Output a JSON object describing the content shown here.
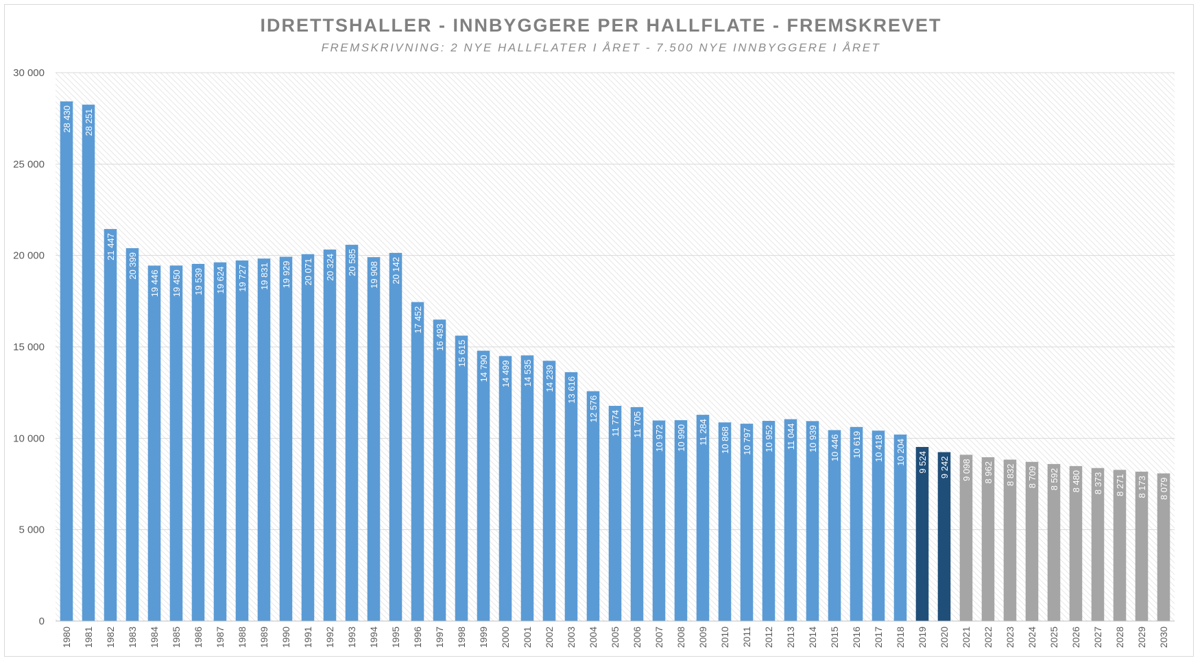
{
  "chart_data": {
    "type": "bar",
    "title": "IDRETTSHALLER - INNBYGGERE PER HALLFLATE - FREMSKREVET",
    "subtitle": "FREMSKRIVNING: 2 NYE HALLFLATER I ÅRET - 7.500 NYE INNBYGGERE I ÅRET",
    "xlabel": "",
    "ylabel": "",
    "ylim": [
      0,
      30000
    ],
    "yticks": [
      0,
      5000,
      10000,
      15000,
      20000,
      25000,
      30000
    ],
    "ytick_labels": [
      "0",
      "5 000",
      "10 000",
      "15 000",
      "20 000",
      "25 000",
      "30 000"
    ],
    "grid": true,
    "legend": "none",
    "categories": [
      "1980",
      "1981",
      "1982",
      "1983",
      "1984",
      "1985",
      "1986",
      "1987",
      "1988",
      "1989",
      "1990",
      "1991",
      "1992",
      "1993",
      "1994",
      "1995",
      "1996",
      "1997",
      "1998",
      "1999",
      "2000",
      "2001",
      "2002",
      "2003",
      "2004",
      "2005",
      "2006",
      "2007",
      "2008",
      "2009",
      "2010",
      "2011",
      "2012",
      "2013",
      "2014",
      "2015",
      "2016",
      "2017",
      "2018",
      "2019",
      "2020",
      "2021",
      "2022",
      "2023",
      "2024",
      "2025",
      "2026",
      "2027",
      "2028",
      "2029",
      "2030"
    ],
    "values": [
      28430,
      28251,
      21447,
      20399,
      19446,
      19450,
      19539,
      19624,
      19727,
      19831,
      19929,
      20071,
      20324,
      20585,
      19908,
      20142,
      17452,
      16493,
      15615,
      14790,
      14499,
      14535,
      14239,
      13616,
      12576,
      11774,
      11705,
      10972,
      10990,
      11284,
      10868,
      10797,
      10952,
      11044,
      10939,
      10446,
      10619,
      10418,
      10204,
      9524,
      9242,
      9098,
      8962,
      8832,
      8709,
      8592,
      8480,
      8373,
      8271,
      8173,
      8079
    ],
    "value_labels": [
      "28 430",
      "28 251",
      "21 447",
      "20 399",
      "19 446",
      "19 450",
      "19 539",
      "19 624",
      "19 727",
      "19 831",
      "19 929",
      "20 071",
      "20 324",
      "20 585",
      "19 908",
      "20 142",
      "17 452",
      "16 493",
      "15 615",
      "14 790",
      "14 499",
      "14 535",
      "14 239",
      "13 616",
      "12 576",
      "11 774",
      "11 705",
      "10 972",
      "10 990",
      "11 284",
      "10 868",
      "10 797",
      "10 952",
      "11 044",
      "10 939",
      "10 446",
      "10 619",
      "10 418",
      "10 204",
      "9 524",
      "9 242",
      "9 098",
      "8 962",
      "8 832",
      "8 709",
      "8 592",
      "8 480",
      "8 373",
      "8 271",
      "8 173",
      "8 079"
    ],
    "bar_groups": [
      {
        "from": "1980",
        "to": "2018",
        "color": "#5b9bd5"
      },
      {
        "from": "2019",
        "to": "2020",
        "color": "#1f4e79"
      },
      {
        "from": "2021",
        "to": "2030",
        "color": "#a5a5a5"
      }
    ],
    "colors": {
      "axis_text": "#595959",
      "gridline": "#d9d9d9",
      "plot_hatch": "#e4e4e4",
      "value_label": "#ffffff"
    }
  }
}
